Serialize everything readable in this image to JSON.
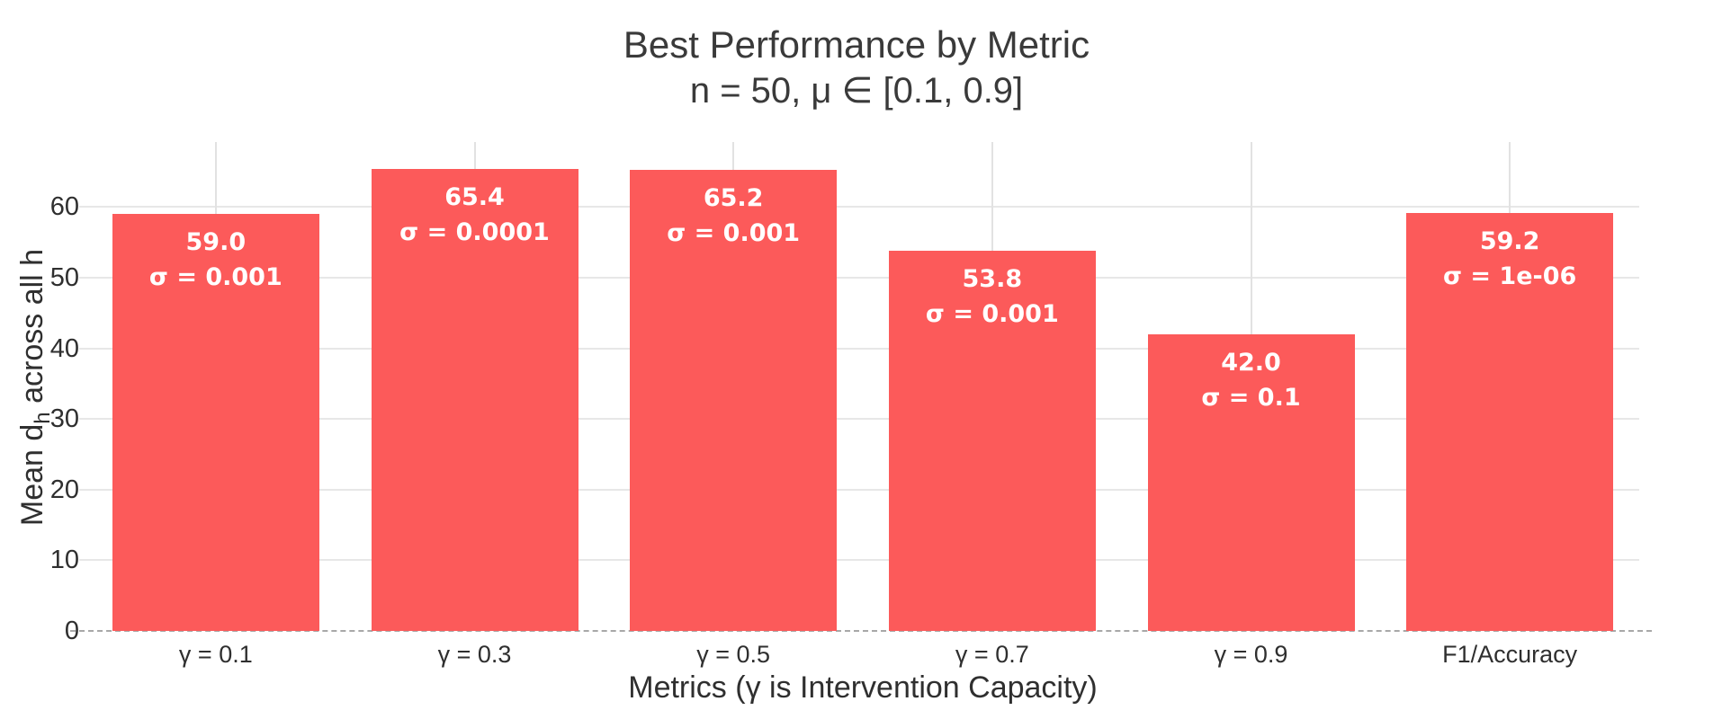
{
  "chart_data": {
    "type": "bar",
    "title": "Best Performance by Metric",
    "subtitle": "n = 50, μ ∈ [0.1, 0.9]",
    "xlabel": "Metrics (γ is Intervention Capacity)",
    "ylabel_prefix": "Mean d",
    "ylabel_sub": "h",
    "ylabel_suffix": " across all h",
    "categories": [
      "γ = 0.1",
      "γ = 0.3",
      "γ = 0.5",
      "γ = 0.7",
      "γ = 0.9",
      "F1/Accuracy"
    ],
    "values": [
      59.0,
      65.4,
      65.2,
      53.8,
      42.0,
      59.2
    ],
    "value_labels": [
      "59.0",
      "65.4",
      "65.2",
      "53.8",
      "42.0",
      "59.2"
    ],
    "sigma_labels": [
      "σ = 0.001",
      "σ = 0.0001",
      "σ = 0.001",
      "σ = 0.001",
      "σ = 0.1",
      "σ = 1e-06"
    ],
    "yticks": [
      0,
      10,
      20,
      30,
      40,
      50,
      60
    ],
    "ylim": [
      0,
      69.2
    ],
    "grid": true,
    "legend": "none",
    "bar_color": "#fc5a5a",
    "label_text_color": "#ffffff"
  }
}
